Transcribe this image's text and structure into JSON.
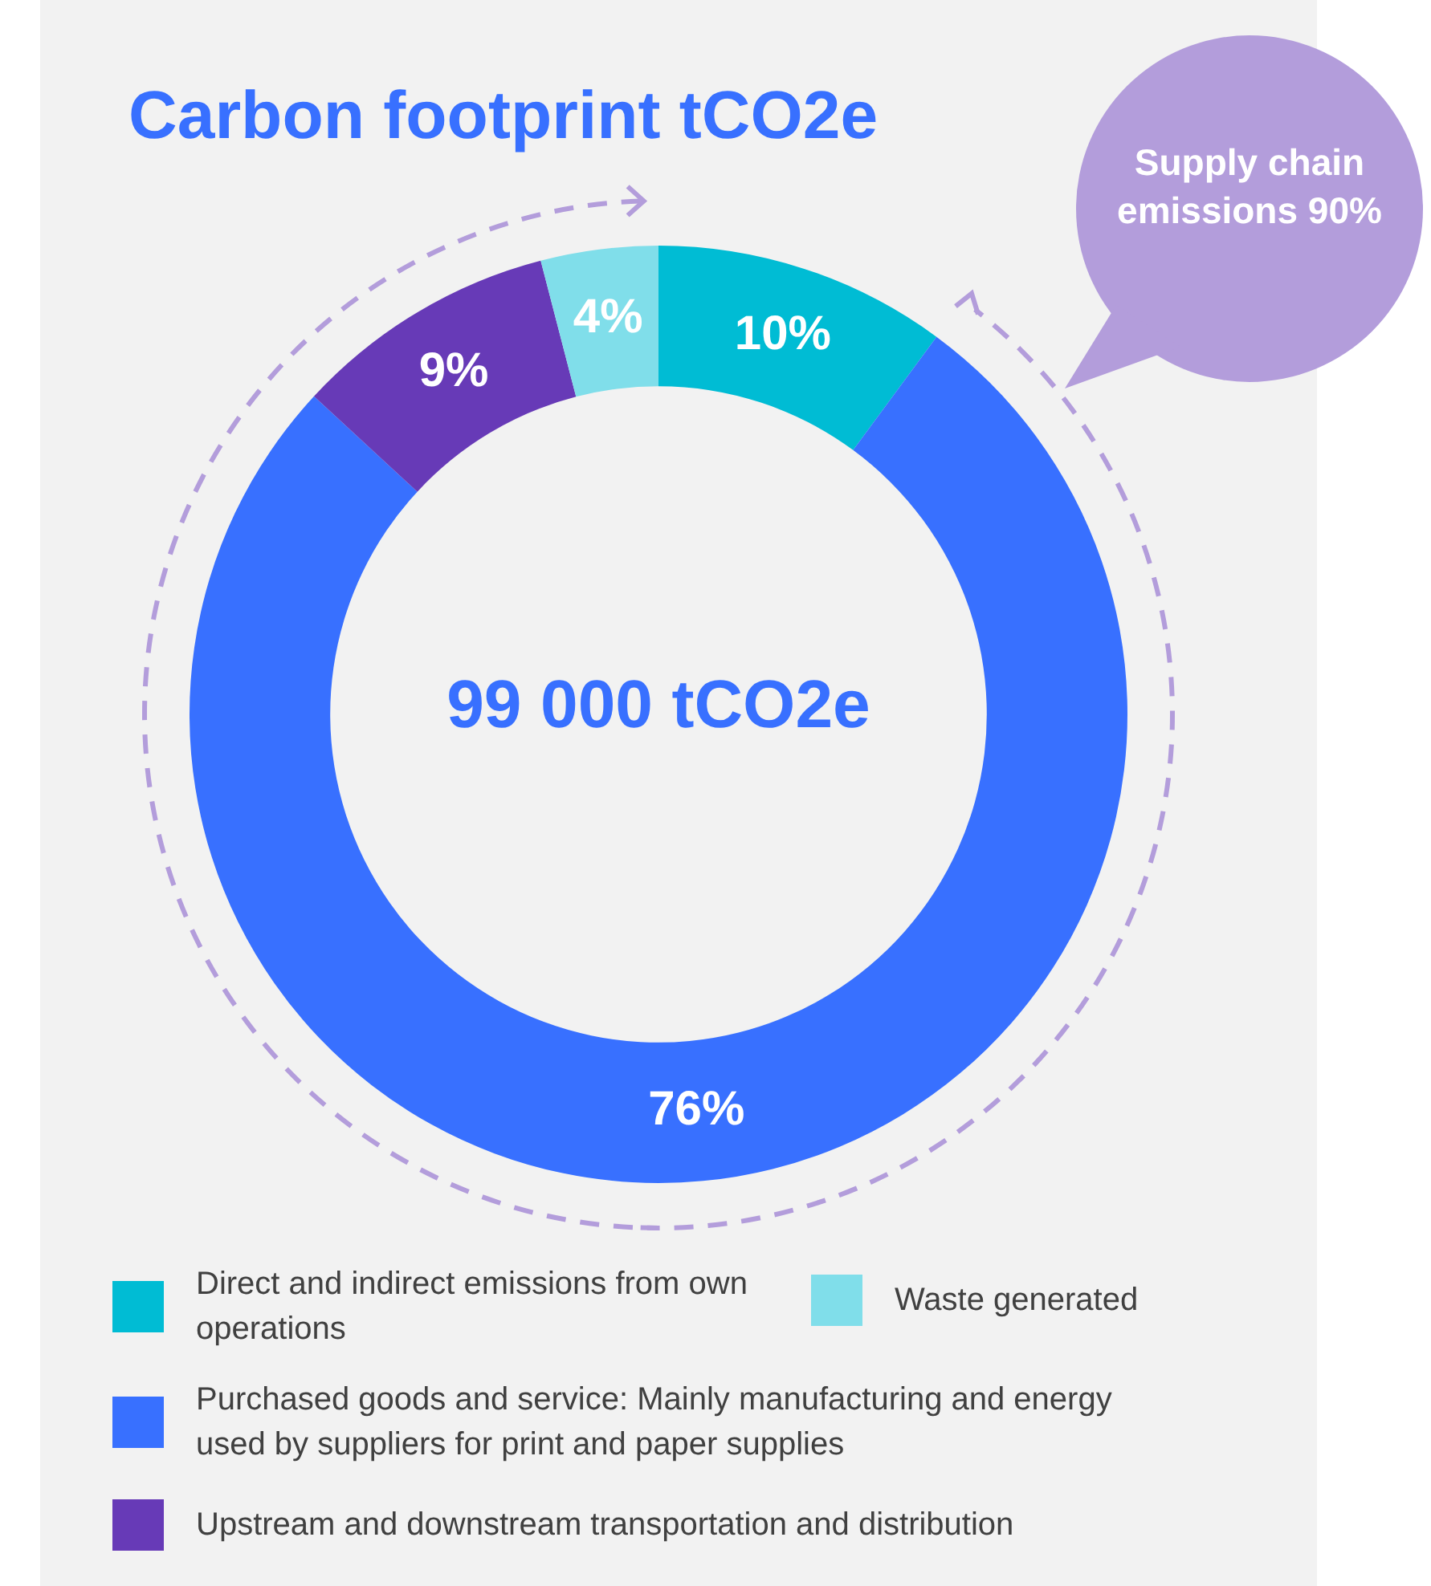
{
  "chart_data": {
    "type": "donut",
    "title": "Carbon footprint tCO2e",
    "categories": [
      "Direct and indirect emissions from own operations",
      "Purchased goods and service: Mainly manufacturing and energy used by suppliers for print and paper supplies",
      "Upstream and downstream transportation and distribution",
      "Waste generated"
    ],
    "values": [
      10,
      76,
      9,
      4
    ],
    "colors": [
      "#00bcd4",
      "#3870ff",
      "#673ab7",
      "#80deea"
    ],
    "value_labels": [
      "10%",
      "76%",
      "9%",
      "4%"
    ],
    "annotations": [
      "99 000 tCO2e",
      "Supply chain emissions 90%"
    ],
    "legend": "bottom"
  }
}
